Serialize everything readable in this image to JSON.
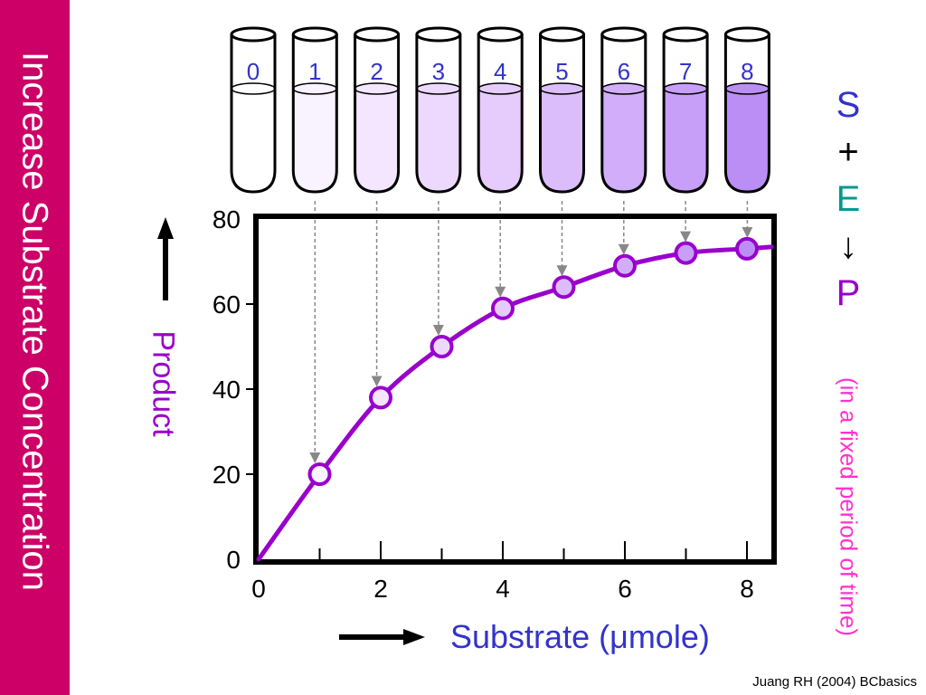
{
  "sidebar": {
    "title": "Increase Substrate Concentration",
    "color": "#cc0066"
  },
  "legend": {
    "items": [
      {
        "text": "S",
        "color": "#3333cc"
      },
      {
        "text": "+",
        "color": "#000000"
      },
      {
        "text": "E",
        "color": "#00998f"
      },
      {
        "text": "↓",
        "color": "#000000"
      },
      {
        "text": "P",
        "color": "#9900cc"
      }
    ],
    "note": "(in a fixed period of time)",
    "note_color": "#ff33cc"
  },
  "credit": "Juang RH (2004) BCbasics",
  "tubes": {
    "labels": [
      "0",
      "1",
      "2",
      "3",
      "4",
      "5",
      "6",
      "7",
      "8"
    ],
    "fill_colors": [
      "#ffffff",
      "#f9f2ff",
      "#f3e6fe",
      "#edd9fd",
      "#e6ccfc",
      "#dcbdfb",
      "#d2aefa",
      "#c79ff8",
      "#bb8ef6"
    ]
  },
  "chart_data": {
    "type": "line",
    "x": [
      0,
      1,
      2,
      3,
      4,
      5,
      6,
      7,
      8
    ],
    "y": [
      0,
      20,
      38,
      50,
      59,
      64,
      69,
      72,
      73
    ],
    "xlabel": "Substrate (μmole)",
    "ylabel": "Product",
    "xlim": [
      0,
      8.4
    ],
    "ylim": [
      0,
      80
    ],
    "xticks": [
      0,
      2,
      4,
      6,
      8
    ],
    "yticks": [
      0,
      20,
      40,
      60,
      80
    ],
    "grid": false,
    "line_color": "#9900cc",
    "xlabel_color": "#3333cc",
    "ylabel_color": "#9900cc"
  }
}
